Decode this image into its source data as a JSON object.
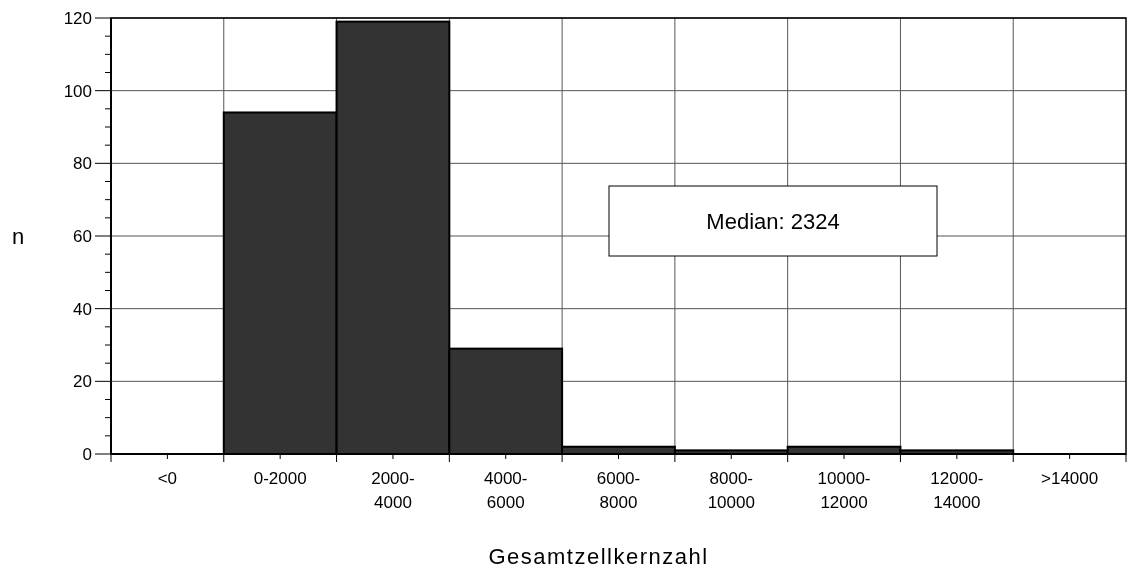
{
  "chart_data": {
    "type": "bar",
    "xlabel": "Gesamtzellkernzahl",
    "ylabel": "n",
    "categories": [
      "<0",
      "0-2000",
      "2000-4000",
      "4000-6000",
      "6000-8000",
      "8000-10000",
      "10000-12000",
      "12000-14000",
      ">14000"
    ],
    "values": [
      0,
      94,
      119,
      29,
      2,
      1,
      2,
      1,
      0
    ],
    "color": "#333333",
    "ylim": [
      0,
      120
    ],
    "yticks": [
      0,
      {
        "value": 5,
        "label": null
      },
      {
        "value": 10,
        "label": null
      },
      {
        "value": 15,
        "label": null
      },
      20,
      {
        "value": 25,
        "label": null
      },
      {
        "value": 30,
        "label": null
      },
      {
        "value": 35,
        "label": null
      },
      40,
      {
        "value": 45,
        "label": null
      },
      {
        "value": 50,
        "label": null
      },
      {
        "value": 55,
        "label": null
      },
      60,
      {
        "value": 65,
        "label": null
      },
      {
        "value": 70,
        "label": null
      },
      {
        "value": 75,
        "label": null
      },
      80,
      {
        "value": 85,
        "label": null
      },
      {
        "value": 90,
        "label": null
      },
      {
        "value": 95,
        "label": null
      },
      100,
      {
        "value": 105,
        "label": null
      },
      {
        "value": 110,
        "label": null
      },
      {
        "value": 115,
        "label": null
      },
      120
    ],
    "grid": true,
    "annotations": [
      "Median: 2324"
    ]
  }
}
